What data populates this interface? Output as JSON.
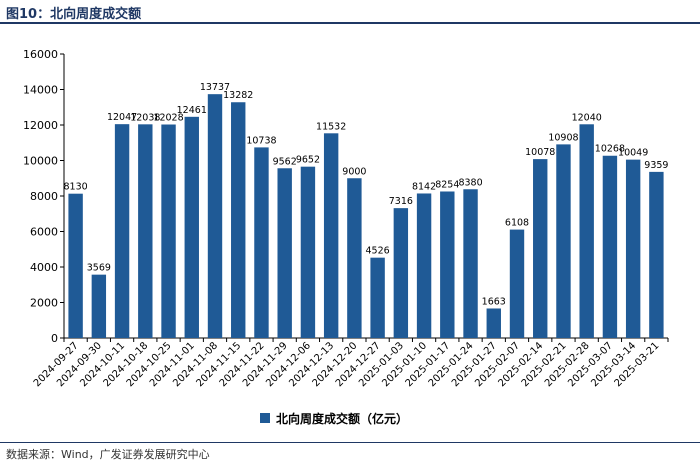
{
  "figure": {
    "title": "图10：北向周度成交额",
    "source": "数据来源：Wind，广发证券发展研究中心"
  },
  "colors": {
    "bar": "#1f5a96",
    "accent": "#1f3864"
  },
  "chart_data": {
    "type": "bar",
    "title": "",
    "xlabel": "",
    "ylabel": "",
    "categories": [
      "2024-09-27",
      "2024-09-30",
      "2024-10-11",
      "2024-10-18",
      "2024-10-25",
      "2024-11-01",
      "2024-11-08",
      "2024-11-15",
      "2024-11-22",
      "2024-11-29",
      "2024-12-06",
      "2024-12-13",
      "2024-12-20",
      "2024-12-27",
      "2025-01-03",
      "2025-01-10",
      "2025-01-17",
      "2025-01-24",
      "2025-01-27",
      "2025-02-07",
      "2025-02-14",
      "2025-02-21",
      "2025-02-28",
      "2025-03-07",
      "2025-03-14",
      "2025-03-21"
    ],
    "series": [
      {
        "name": "北向周度成交额（亿元）",
        "values": [
          8130,
          3569,
          12047,
          12038,
          12028,
          12461,
          13737,
          13282,
          10738,
          9562,
          9652,
          11532,
          9000,
          4526,
          7316,
          8142,
          8254,
          8380,
          1663,
          6108,
          10078,
          10908,
          12040,
          10268,
          10049,
          9359
        ]
      }
    ],
    "data_labels": [
      "8130",
      "3569",
      "12047",
      "12038",
      "12028",
      "12461",
      "13737",
      "13282",
      "10738",
      "9562",
      "9652",
      "11532",
      "9000",
      "4526",
      "7316",
      "8142",
      "8254",
      "8380",
      "1663",
      "6108",
      "10078",
      "10908",
      "12040",
      "10268",
      "10049",
      "9359"
    ],
    "ylim": [
      0,
      16000
    ],
    "yticks": [
      0,
      2000,
      4000,
      6000,
      8000,
      10000,
      12000,
      14000,
      16000
    ],
    "ytick_labels": [
      "0",
      "2000",
      "4000",
      "6000",
      "8000",
      "10000",
      "12000",
      "14000",
      "16000"
    ],
    "grid": false,
    "legend": {
      "position": "bottom"
    }
  }
}
